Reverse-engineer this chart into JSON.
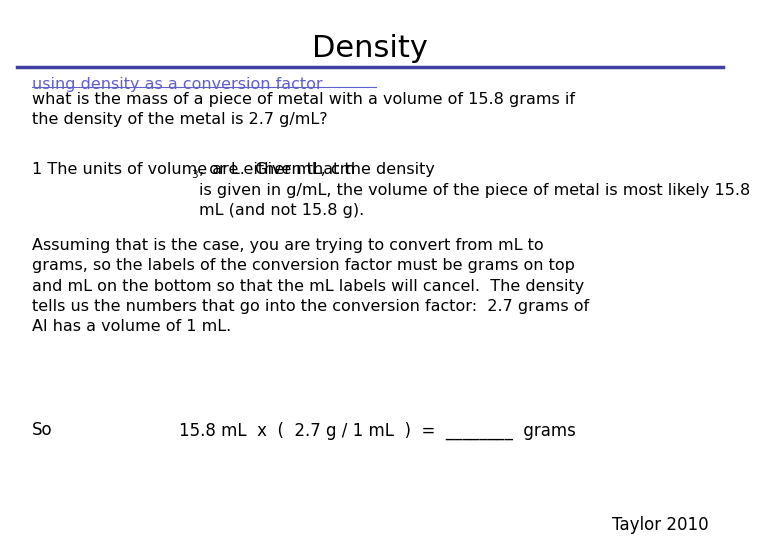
{
  "title": "Density",
  "title_fontsize": 22,
  "title_font": "DejaVu Sans",
  "bg_color": "#ffffff",
  "line_color": "#4040a0",
  "link_text": "using density as a conversion factor",
  "link_color": "#6060cc",
  "para0": "what is the mass of a piece of metal with a volume of 15.8 grams if\nthe density of the metal is 2.7 g/mL?",
  "para1_prefix": "1 The units of volume are either mL, cm",
  "para1_super": "3",
  "para1_suffix": ", or L.  Given that the density\nis given in g/mL, the volume of the piece of metal is most likely 15.8\nmL (and not 15.8 g).",
  "para2": "Assuming that is the case, you are trying to convert from mL to\ngrams, so the labels of the conversion factor must be grams on top\nand mL on the bottom so that the mL labels will cancel.  The density\ntells us the numbers that go into the conversion factor:  2.7 grams of\nAl has a volume of 1 mL.",
  "so_label": "So",
  "equation": "15.8 mL  x  (  2.7 g / 1 mL  )  =  ________  grams",
  "footer": "Taylor 2010",
  "body_fontsize": 11.5,
  "body_font": "DejaVu Sans",
  "footer_fontsize": 12
}
